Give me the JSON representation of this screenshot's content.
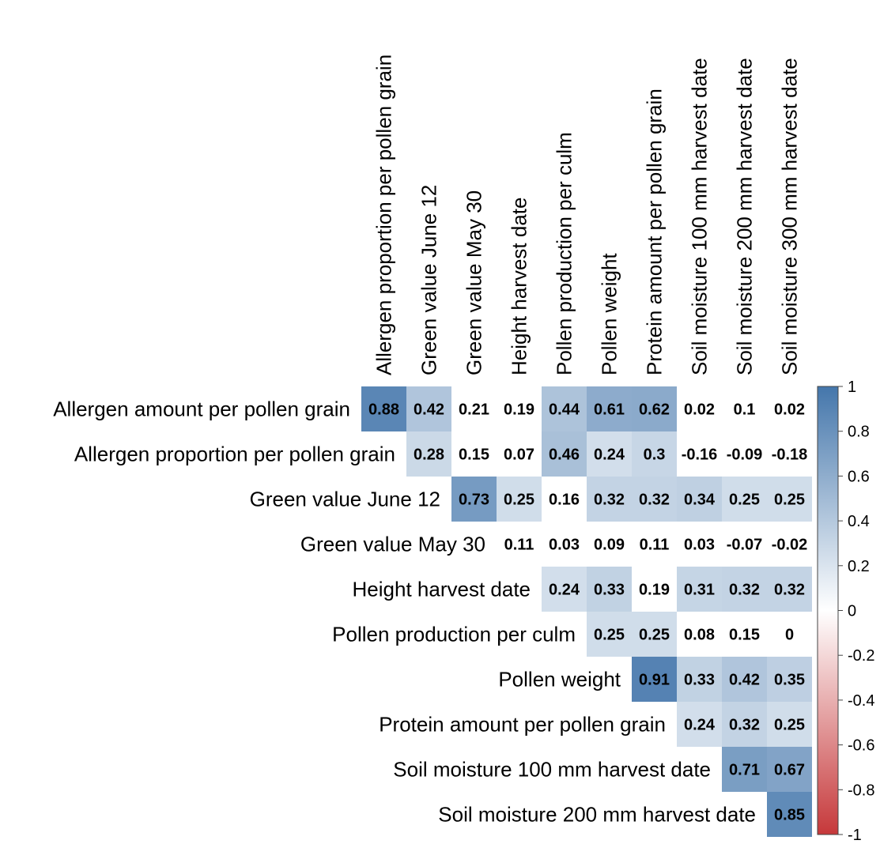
{
  "chart_data": {
    "type": "heatmap",
    "title": "",
    "rows": [
      "Allergen amount per pollen grain",
      "Allergen proportion per pollen grain",
      "Green value June 12",
      "Green value May 30",
      "Height harvest date",
      "Pollen production per culm",
      "Pollen weight",
      "Protein amount per pollen grain",
      "Soil moisture 100 mm harvest date",
      "Soil moisture 200 mm harvest date"
    ],
    "columns": [
      "Allergen proportion per pollen grain",
      "Green value June 12",
      "Green value May 30",
      "Height harvest date",
      "Pollen production per culm",
      "Pollen weight",
      "Protein amount per pollen grain",
      "Soil moisture 100 mm harvest date",
      "Soil moisture 200 mm harvest date",
      "Soil moisture 300 mm harvest date"
    ],
    "values": [
      [
        0.88,
        0.42,
        0.21,
        0.19,
        0.44,
        0.61,
        0.62,
        0.02,
        0.1,
        0.02
      ],
      [
        null,
        0.28,
        0.15,
        0.07,
        0.46,
        0.24,
        0.3,
        -0.16,
        -0.09,
        -0.18
      ],
      [
        null,
        null,
        0.73,
        0.25,
        0.16,
        0.32,
        0.32,
        0.34,
        0.25,
        0.25
      ],
      [
        null,
        null,
        null,
        0.11,
        0.03,
        0.09,
        0.11,
        0.03,
        -0.07,
        -0.02
      ],
      [
        null,
        null,
        null,
        null,
        0.24,
        0.33,
        0.19,
        0.31,
        0.32,
        0.32
      ],
      [
        null,
        null,
        null,
        null,
        null,
        0.25,
        0.25,
        0.08,
        0.15,
        0
      ],
      [
        null,
        null,
        null,
        null,
        null,
        null,
        0.91,
        0.33,
        0.42,
        0.35
      ],
      [
        null,
        null,
        null,
        null,
        null,
        null,
        null,
        0.24,
        0.32,
        0.25
      ],
      [
        null,
        null,
        null,
        null,
        null,
        null,
        null,
        null,
        0.71,
        0.67
      ],
      [
        null,
        null,
        null,
        null,
        null,
        null,
        null,
        null,
        null,
        0.85
      ]
    ],
    "display_labels": [
      [
        "0.88",
        "0.42",
        "0.21",
        "0.19",
        "0.44",
        "0.61",
        "0.62",
        "0.02",
        "0.1",
        "0.02"
      ],
      [
        null,
        "0.28",
        "0.15",
        "0.07",
        "0.46",
        "0.24",
        "0.3",
        "-0.16",
        "-0.09",
        "-0.18"
      ],
      [
        null,
        null,
        "0.73",
        "0.25",
        "0.16",
        "0.32",
        "0.32",
        "0.34",
        "0.25",
        "0.25"
      ],
      [
        null,
        null,
        null,
        "0.11",
        "0.03",
        "0.09",
        "0.11",
        "0.03",
        "-0.07",
        "-0.02"
      ],
      [
        null,
        null,
        null,
        null,
        "0.24",
        "0.33",
        "0.19",
        "0.31",
        "0.32",
        "0.32"
      ],
      [
        null,
        null,
        null,
        null,
        null,
        "0.25",
        "0.25",
        "0.08",
        "0.15",
        "0"
      ],
      [
        null,
        null,
        null,
        null,
        null,
        null,
        "0.91",
        "0.33",
        "0.42",
        "0.35"
      ],
      [
        null,
        null,
        null,
        null,
        null,
        null,
        null,
        "0.24",
        "0.32",
        "0.25"
      ],
      [
        null,
        null,
        null,
        null,
        null,
        null,
        null,
        null,
        "0.71",
        "0.67"
      ],
      [
        null,
        null,
        null,
        null,
        null,
        null,
        null,
        null,
        null,
        "0.85"
      ]
    ],
    "color_scale": {
      "range": [
        -1,
        1
      ],
      "ticks": [
        "1",
        "0.8",
        "0.6",
        "0.4",
        "0.2",
        "0",
        "-0.2",
        "-0.4",
        "-0.6",
        "-0.8",
        "-1"
      ],
      "tick_values": [
        1,
        0.8,
        0.6,
        0.4,
        0.2,
        0,
        -0.2,
        -0.4,
        -0.6,
        -0.8,
        -1
      ],
      "colors": {
        "negative": "#C6383A",
        "zero": "#FFFFFF",
        "positive": "#4476AB"
      }
    },
    "legend": "right",
    "grid": false
  }
}
